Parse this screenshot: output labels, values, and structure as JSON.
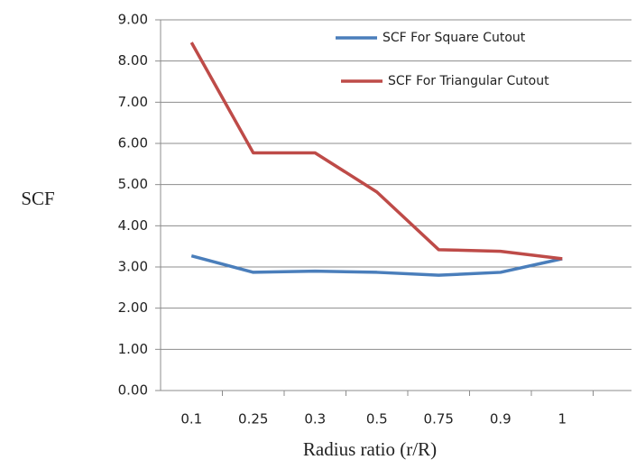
{
  "chart_data": {
    "type": "line",
    "x_label": "Radius ratio (r/R)",
    "y_label": "SCF",
    "categories": [
      "0.1",
      "0.25",
      "0.3",
      "0.5",
      "0.75",
      "0.9",
      "1"
    ],
    "series": [
      {
        "name": "SCF For Square Cutout",
        "color": "#4a7ebb",
        "values": [
          3.27,
          2.87,
          2.9,
          2.87,
          2.8,
          2.87,
          3.2
        ]
      },
      {
        "name": "SCF For Triangular  Cutout",
        "color": "#be4b48",
        "values": [
          8.45,
          5.77,
          5.77,
          4.82,
          3.42,
          3.38,
          3.2
        ]
      }
    ],
    "ylim": [
      0,
      9
    ],
    "yticks": [
      {
        "value": 0,
        "label": "0.00"
      },
      {
        "value": 1,
        "label": "1.00"
      },
      {
        "value": 2,
        "label": "2.00"
      },
      {
        "value": 3,
        "label": "3.00"
      },
      {
        "value": 4,
        "label": "4.00"
      },
      {
        "value": 5,
        "label": "5.00"
      },
      {
        "value": 6,
        "label": "6.00"
      },
      {
        "value": 7,
        "label": "7.00"
      },
      {
        "value": 8,
        "label": "8.00"
      },
      {
        "value": 9,
        "label": "9.00"
      }
    ],
    "grid": true
  }
}
